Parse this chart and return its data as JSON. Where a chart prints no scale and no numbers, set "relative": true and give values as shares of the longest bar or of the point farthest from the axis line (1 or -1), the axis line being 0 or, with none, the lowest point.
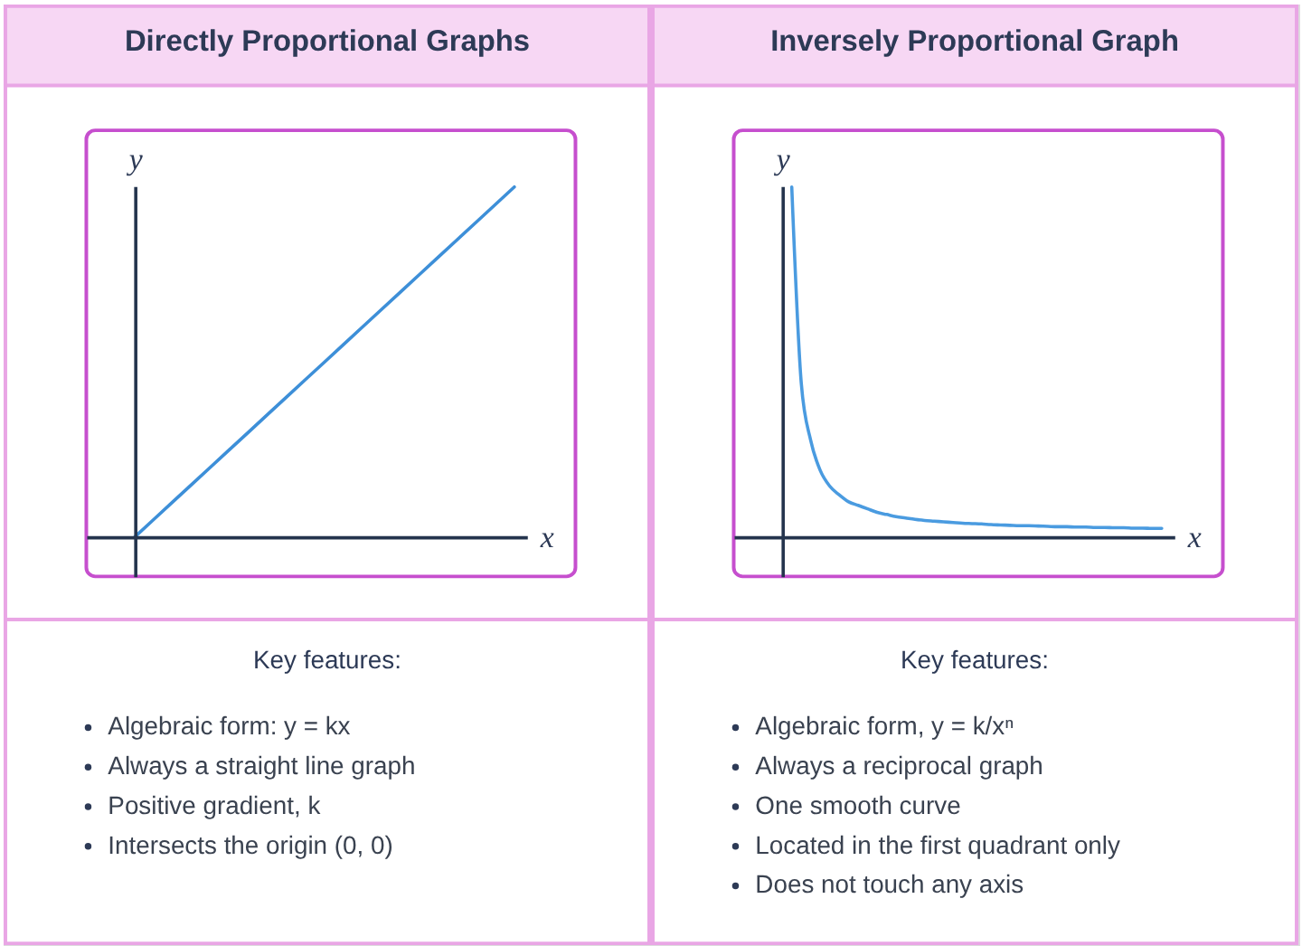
{
  "chart_data": [
    {
      "type": "line",
      "title": "Directly Proportional Graphs",
      "xlabel": "x",
      "ylabel": "y",
      "relative": true,
      "categories": [
        null,
        null,
        null,
        null,
        null,
        null,
        null,
        null,
        null,
        null,
        null
      ],
      "series": [
        {
          "color": "#3d8fd8",
          "values": [
            0,
            0.1,
            0.2,
            0.3,
            0.4,
            0.5,
            0.6,
            0.7,
            0.8,
            0.9,
            1.0
          ]
        }
      ],
      "annotations": [
        "Key features:",
        "Algebraic form: y = kx",
        "Always a straight line graph",
        "Positive gradient, k",
        "Intersects the origin (0, 0)"
      ]
    },
    {
      "type": "line",
      "title": "Inversely Proportional Graph",
      "xlabel": "x",
      "ylabel": "y",
      "relative": true,
      "categories": [
        null,
        null,
        null,
        null,
        null,
        null,
        null,
        null,
        null,
        null,
        null,
        null,
        null,
        null,
        null,
        null,
        null,
        null,
        null,
        null,
        null,
        null,
        null,
        null,
        null,
        null,
        null,
        null,
        null,
        null,
        null,
        null,
        null,
        null,
        null,
        null,
        null,
        null,
        null,
        null,
        null
      ],
      "series": [
        {
          "color": "#4a9be0",
          "values": [
            null,
            1.0,
            0.44,
            0.275,
            0.19,
            0.145,
            0.12,
            0.1,
            0.09,
            0.08,
            0.07,
            0.064,
            0.058,
            0.054,
            0.05,
            0.047,
            0.045,
            0.043,
            0.041,
            0.039,
            0.038,
            0.037,
            0.035,
            0.034,
            0.033,
            0.032,
            0.032,
            0.031,
            0.03,
            0.029,
            0.029,
            0.028,
            0.028,
            0.027,
            0.027,
            0.026,
            0.026,
            0.025,
            0.025,
            0.024,
            0.024
          ]
        }
      ],
      "annotations": [
        "Key features:",
        "Algebraic form, y = k/xⁿ",
        "Always a reciprocal graph",
        "One smooth curve",
        "Located in the first quadrant only",
        "Does not touch any axis"
      ]
    }
  ]
}
